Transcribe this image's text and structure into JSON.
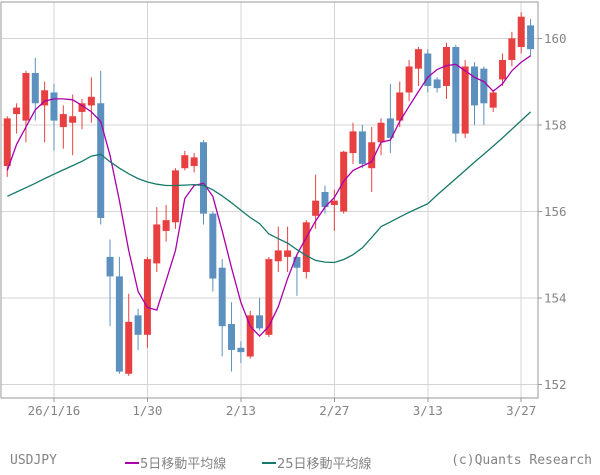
{
  "chart": {
    "symbol": "USDJPY",
    "legend": {
      "ma5_label": "5日移動平均線",
      "ma25_label": "25日移動平均線"
    },
    "copyright": "(c)Quants Research"
  },
  "chart_data": {
    "type": "candlestick",
    "title": "USDJPY daily candlestick chart with 5-day and 25-day moving averages",
    "ylabel": "",
    "xlabel": "",
    "ylim": [
      151.69,
      160.84
    ],
    "grid": true,
    "y_axis_side": "right",
    "y_ticks": [
      {
        "value": 152,
        "label": "152"
      },
      {
        "value": 154,
        "label": "154"
      },
      {
        "value": 156,
        "label": "156"
      },
      {
        "value": 158,
        "label": "158"
      },
      {
        "value": 160,
        "label": "160"
      }
    ],
    "x_ticks": [
      {
        "index": 5,
        "label": "26/1/16"
      },
      {
        "index": 15,
        "label": "1/30"
      },
      {
        "index": 25,
        "label": "2/13"
      },
      {
        "index": 35,
        "label": "2/27"
      },
      {
        "index": 45,
        "label": "3/13"
      },
      {
        "index": 55,
        "label": "3/27"
      }
    ],
    "candles_ohlc": [
      [
        157.05,
        158.2,
        156.8,
        158.15
      ],
      [
        158.25,
        158.5,
        157.8,
        158.4
      ],
      [
        158.1,
        159.25,
        157.6,
        159.2
      ],
      [
        159.2,
        159.55,
        158.1,
        158.5
      ],
      [
        158.45,
        159.0,
        157.6,
        158.8
      ],
      [
        158.75,
        158.95,
        157.4,
        158.1
      ],
      [
        157.95,
        158.45,
        157.45,
        158.25
      ],
      [
        158.05,
        158.7,
        157.3,
        158.2
      ],
      [
        158.3,
        158.6,
        157.9,
        158.5
      ],
      [
        158.45,
        159.1,
        158.05,
        158.65
      ],
      [
        158.5,
        159.25,
        155.7,
        155.85
      ],
      [
        154.95,
        155.35,
        153.35,
        154.5
      ],
      [
        154.5,
        154.95,
        152.25,
        152.3
      ],
      [
        152.25,
        154.1,
        152.2,
        153.45
      ],
      [
        153.6,
        153.75,
        152.8,
        153.15
      ],
      [
        153.15,
        154.95,
        152.85,
        154.9
      ],
      [
        154.8,
        156.1,
        154.6,
        155.7
      ],
      [
        155.55,
        156.15,
        155.3,
        155.8
      ],
      [
        155.75,
        157.0,
        155.6,
        156.95
      ],
      [
        157.0,
        157.4,
        156.95,
        157.3
      ],
      [
        157.05,
        157.35,
        156.9,
        157.25
      ],
      [
        157.6,
        157.65,
        155.7,
        155.95
      ],
      [
        155.95,
        156.0,
        154.15,
        154.45
      ],
      [
        154.7,
        154.9,
        152.65,
        153.35
      ],
      [
        153.4,
        153.9,
        152.3,
        152.8
      ],
      [
        152.85,
        153.0,
        152.5,
        152.75
      ],
      [
        152.65,
        153.7,
        152.6,
        153.6
      ],
      [
        153.6,
        154.0,
        153.25,
        153.3
      ],
      [
        153.15,
        154.95,
        153.1,
        154.9
      ],
      [
        154.85,
        155.65,
        154.6,
        155.1
      ],
      [
        154.95,
        155.65,
        154.6,
        155.1
      ],
      [
        154.95,
        155.0,
        154.05,
        154.7
      ],
      [
        154.6,
        155.8,
        154.45,
        155.75
      ],
      [
        155.9,
        156.85,
        155.6,
        156.25
      ],
      [
        156.45,
        156.6,
        155.95,
        156.1
      ],
      [
        156.15,
        156.5,
        155.55,
        156.25
      ],
      [
        156.0,
        157.4,
        155.95,
        157.38
      ],
      [
        157.35,
        158.05,
        157.1,
        157.85
      ],
      [
        157.85,
        158.0,
        157.0,
        157.1
      ],
      [
        157.0,
        157.95,
        156.45,
        157.6
      ],
      [
        157.6,
        158.15,
        157.3,
        158.05
      ],
      [
        158.15,
        158.95,
        157.35,
        157.7
      ],
      [
        158.1,
        159.0,
        157.95,
        158.75
      ],
      [
        158.75,
        159.5,
        158.55,
        159.35
      ],
      [
        159.3,
        159.8,
        158.9,
        159.75
      ],
      [
        159.65,
        159.75,
        158.75,
        158.9
      ],
      [
        159.05,
        159.1,
        158.75,
        158.85
      ],
      [
        158.9,
        159.9,
        158.6,
        159.8
      ],
      [
        159.8,
        159.85,
        157.6,
        157.8
      ],
      [
        157.8,
        159.5,
        157.7,
        159.35
      ],
      [
        159.35,
        159.45,
        158.0,
        158.45
      ],
      [
        159.3,
        159.35,
        158.0,
        158.5
      ],
      [
        158.4,
        158.8,
        158.3,
        158.75
      ],
      [
        159.05,
        159.65,
        158.9,
        159.5
      ],
      [
        159.5,
        160.15,
        159.35,
        160.0
      ],
      [
        159.8,
        160.6,
        159.65,
        160.5
      ],
      [
        160.3,
        160.45,
        159.6,
        159.75
      ]
    ],
    "series": [
      {
        "name": "5日移動平均線",
        "values": [
          156.95,
          157.55,
          157.95,
          158.35,
          158.55,
          158.6,
          158.6,
          158.58,
          158.45,
          158.3,
          158.08,
          157.3,
          156.25,
          155.1,
          154.15,
          153.78,
          153.72,
          154.4,
          155.1,
          156.3,
          156.6,
          156.65,
          156.35,
          155.55,
          154.7,
          153.9,
          153.35,
          153.12,
          153.35,
          153.8,
          154.45,
          155.0,
          155.4,
          155.78,
          156.1,
          156.32,
          156.7,
          156.95,
          157.05,
          157.15,
          157.6,
          157.65,
          158.08,
          158.43,
          158.77,
          159.1,
          159.28,
          159.37,
          159.4,
          159.25,
          159.1,
          159.0,
          158.78,
          158.95,
          159.25,
          159.45,
          159.6
        ]
      },
      {
        "name": "25日移動平均線",
        "values": [
          156.35,
          156.45,
          156.55,
          156.65,
          156.76,
          156.86,
          156.96,
          157.06,
          157.16,
          157.28,
          157.32,
          157.15,
          157.0,
          156.87,
          156.76,
          156.68,
          156.63,
          156.6,
          156.6,
          156.61,
          156.62,
          156.6,
          156.5,
          156.36,
          156.2,
          156.03,
          155.86,
          155.72,
          155.48,
          155.37,
          155.27,
          155.12,
          154.98,
          154.87,
          154.83,
          154.82,
          154.89,
          155.0,
          155.16,
          155.4,
          155.65,
          155.76,
          155.87,
          155.98,
          156.08,
          156.18,
          156.38,
          156.57,
          156.76,
          156.95,
          157.14,
          157.32,
          157.51,
          157.7,
          157.9,
          158.1,
          158.3
        ]
      }
    ],
    "colors": {
      "up_candle": "#e84040",
      "down_candle": "#5c90be",
      "ma5_line": "#aa00aa",
      "ma25_line": "#16796a",
      "grid": "#d5d5d5",
      "border": "#999999",
      "axis_text": "#848484"
    }
  }
}
